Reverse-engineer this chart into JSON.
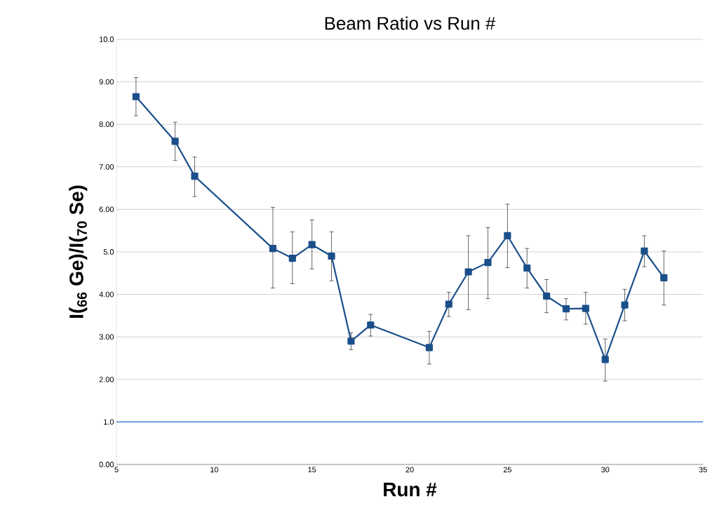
{
  "chart_data": {
    "type": "line",
    "title": "Beam Ratio vs Run #",
    "xlabel": "Run #",
    "ylabel": "I($_{66}$ Ge)/I($_{70}$ Se)",
    "x": [
      6,
      8,
      9,
      13,
      14,
      15,
      16,
      17,
      18,
      21,
      22,
      23,
      24,
      25,
      26,
      27,
      28,
      29,
      30,
      31,
      32,
      33
    ],
    "series": [
      {
        "color": "#1a4f8a",
        "values": [
          8.65,
          7.6,
          6.78,
          5.08,
          4.85,
          5.17,
          4.9,
          2.9,
          3.28,
          2.75,
          3.77,
          4.53,
          4.75,
          5.38,
          4.62,
          3.96,
          3.66,
          3.67,
          2.47,
          3.75,
          5.02,
          4.39
        ],
        "errors": [
          [
            8.2,
            9.1
          ],
          [
            7.15,
            8.05
          ],
          [
            6.3,
            7.23
          ],
          [
            4.15,
            6.05
          ],
          [
            4.25,
            5.47
          ],
          [
            4.6,
            5.75
          ],
          [
            4.32,
            5.47
          ],
          [
            2.7,
            3.1
          ],
          [
            3.02,
            3.53
          ],
          [
            2.36,
            3.13
          ],
          [
            3.48,
            4.05
          ],
          [
            3.64,
            5.38
          ],
          [
            3.9,
            5.57
          ],
          [
            4.63,
            6.12
          ],
          [
            4.15,
            5.08
          ],
          [
            3.57,
            4.35
          ],
          [
            3.4,
            3.9
          ],
          [
            3.3,
            4.05
          ],
          [
            1.96,
            2.95
          ],
          [
            3.38,
            4.12
          ],
          [
            4.65,
            5.38
          ],
          [
            3.75,
            5.02
          ]
        ]
      }
    ],
    "marker": "square",
    "line_style": "solid",
    "grid": "y",
    "xlim": [
      5,
      35
    ],
    "xticks": [
      5,
      10,
      15,
      20,
      25,
      30,
      35
    ],
    "ylim": [
      0,
      10
    ],
    "yticks": [
      {
        "value": 0,
        "label": "0.00"
      },
      {
        "value": 1,
        "label": "1.0"
      },
      {
        "value": 2,
        "label": "2.00"
      },
      {
        "value": 3,
        "label": "3.00"
      },
      {
        "value": 4,
        "label": "4.00"
      },
      {
        "value": 5,
        "label": "5.0"
      },
      {
        "value": 6,
        "label": "6.00"
      },
      {
        "value": 7,
        "label": "7.00"
      },
      {
        "value": 8,
        "label": "8.00"
      },
      {
        "value": 9,
        "label": "9.00"
      },
      {
        "value": 10,
        "label": "10.0"
      }
    ],
    "ref_lines": [
      {
        "axis": "y",
        "value": 1,
        "color": "#1f6fd0",
        "line_style": "solid"
      }
    ]
  }
}
